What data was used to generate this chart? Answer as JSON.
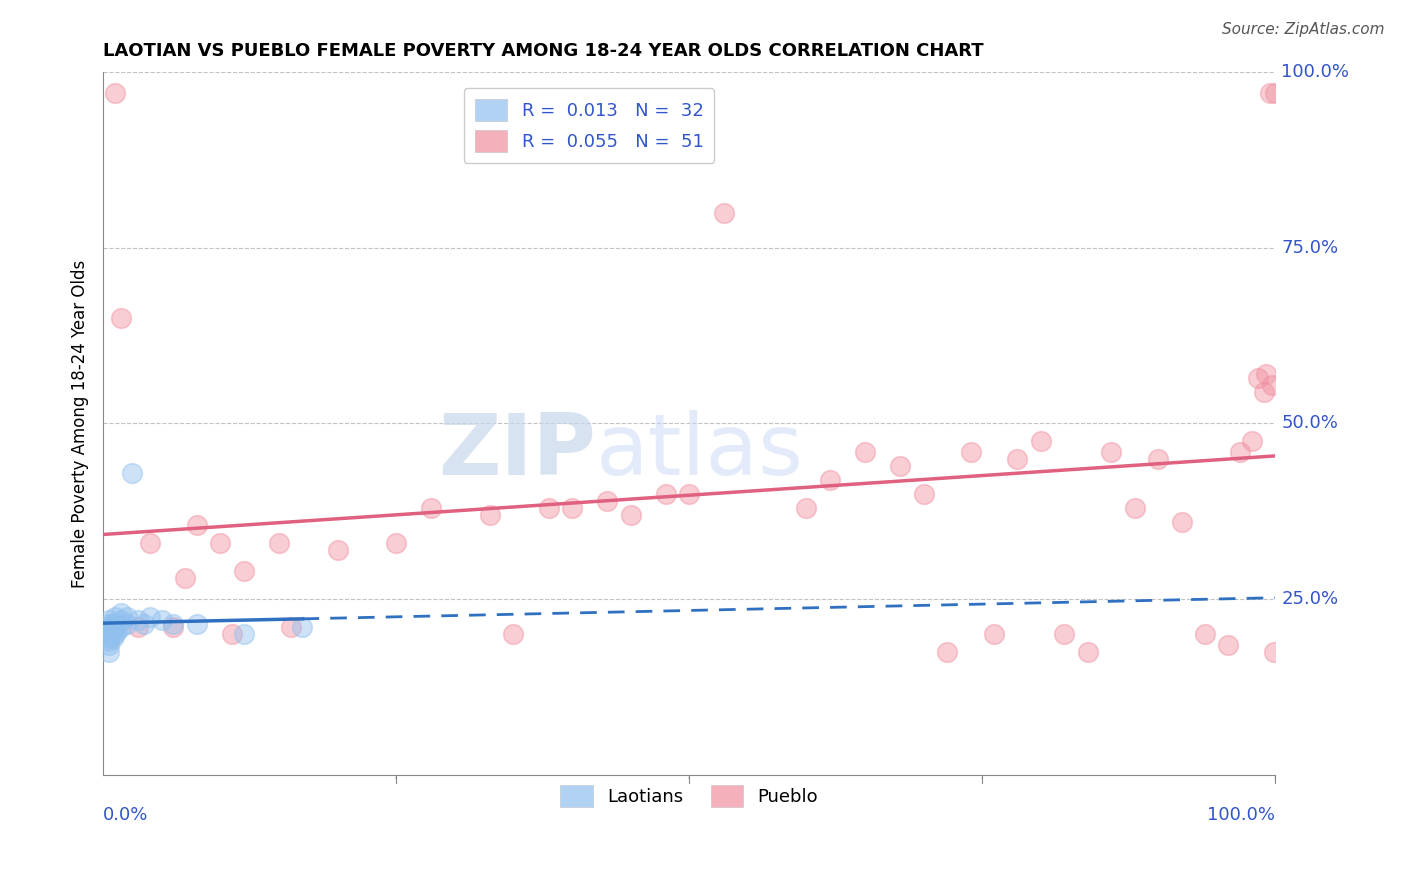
{
  "title": "LAOTIAN VS PUEBLO FEMALE POVERTY AMONG 18-24 YEAR OLDS CORRELATION CHART",
  "source": "Source: ZipAtlas.com",
  "ylabel": "Female Poverty Among 18-24 Year Olds",
  "xlim": [
    0,
    1
  ],
  "ylim": [
    0,
    1
  ],
  "ytick_vals": [
    0.25,
    0.5,
    0.75,
    1.0
  ],
  "ytick_labels": [
    "25.0%",
    "50.0%",
    "75.0%",
    "100.0%"
  ],
  "legend_r_laotian": "0.013",
  "legend_n_laotian": "32",
  "legend_r_pueblo": "0.055",
  "legend_n_pueblo": "51",
  "laotian_color": "#90C0EE",
  "pueblo_color": "#F090A0",
  "laotian_line_color": "#3070C0",
  "pueblo_line_color": "#E06080",
  "laotian_x": [
    0.005,
    0.005,
    0.005,
    0.005,
    0.005,
    0.005,
    0.005,
    0.005,
    0.005,
    0.008,
    0.008,
    0.008,
    0.01,
    0.01,
    0.01,
    0.01,
    0.012,
    0.012,
    0.015,
    0.015,
    0.015,
    0.02,
    0.02,
    0.025,
    0.03,
    0.035,
    0.04,
    0.05,
    0.06,
    0.08,
    0.12,
    0.17
  ],
  "laotian_y": [
    0.175,
    0.185,
    0.19,
    0.195,
    0.2,
    0.205,
    0.21,
    0.215,
    0.22,
    0.195,
    0.205,
    0.215,
    0.2,
    0.21,
    0.215,
    0.225,
    0.205,
    0.215,
    0.21,
    0.22,
    0.23,
    0.215,
    0.225,
    0.43,
    0.22,
    0.215,
    0.225,
    0.22,
    0.215,
    0.215,
    0.2,
    0.21
  ],
  "pueblo_x": [
    0.01,
    0.015,
    0.03,
    0.04,
    0.06,
    0.07,
    0.08,
    0.1,
    0.11,
    0.12,
    0.15,
    0.16,
    0.2,
    0.25,
    0.28,
    0.33,
    0.38,
    0.4,
    0.43,
    0.45,
    0.48,
    0.5,
    0.53,
    0.6,
    0.62,
    0.65,
    0.68,
    0.7,
    0.72,
    0.74,
    0.76,
    0.78,
    0.8,
    0.82,
    0.84,
    0.86,
    0.88,
    0.9,
    0.92,
    0.94,
    0.96,
    0.97,
    0.98,
    0.985,
    0.99,
    0.992,
    0.995,
    0.997,
    0.999,
    1.0,
    0.35
  ],
  "pueblo_y": [
    0.97,
    0.65,
    0.21,
    0.33,
    0.21,
    0.28,
    0.355,
    0.33,
    0.2,
    0.29,
    0.33,
    0.21,
    0.32,
    0.33,
    0.38,
    0.37,
    0.38,
    0.38,
    0.39,
    0.37,
    0.4,
    0.4,
    0.8,
    0.38,
    0.42,
    0.46,
    0.44,
    0.4,
    0.175,
    0.46,
    0.2,
    0.45,
    0.475,
    0.2,
    0.175,
    0.46,
    0.38,
    0.45,
    0.36,
    0.2,
    0.185,
    0.46,
    0.475,
    0.565,
    0.545,
    0.57,
    0.97,
    0.555,
    0.175,
    0.97,
    0.2
  ]
}
